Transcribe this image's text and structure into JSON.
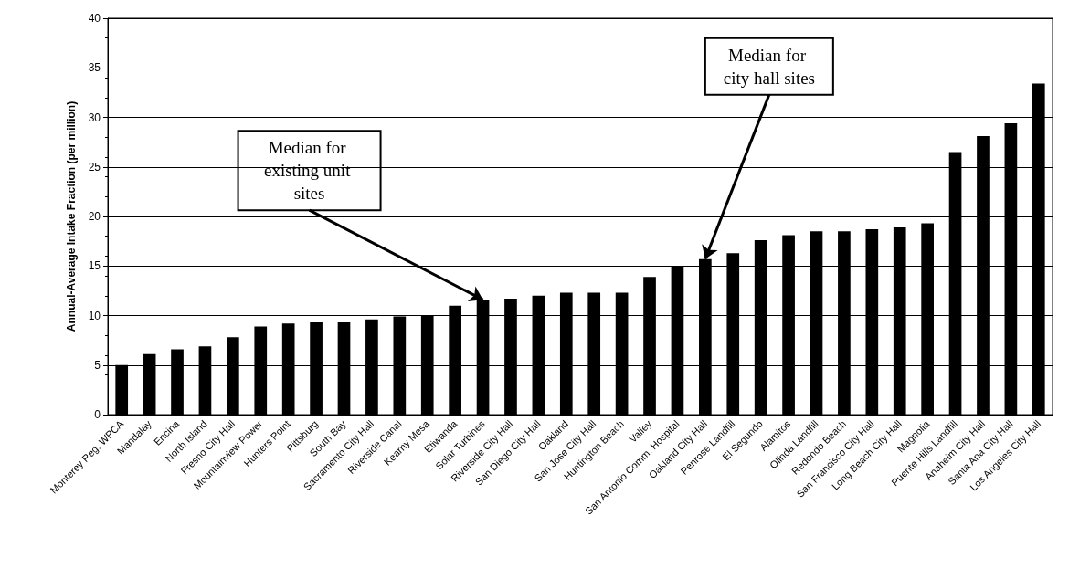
{
  "chart_data": {
    "type": "bar",
    "ylabel": "Annual-Average Intake Fraction (per million)",
    "categories": [
      "Monterey Reg. WPCA",
      "Mandalay",
      "Encina",
      "North Island",
      "Fresno City Hall",
      "Mountainview Power",
      "Hunters Point",
      "Pittsburg",
      "South Bay",
      "Sacramento City Hall",
      "Riverside Canal",
      "Kearny Mesa",
      "Etiwanda",
      "Solar Turbines",
      "Riverside City Hall",
      "San Diego City Hall",
      "Oakland",
      "San Jose City Hall",
      "Huntington Beach",
      "Valley",
      "San Antonio Comm. Hospital",
      "Oakland City Hall",
      "Penrose Landfill",
      "El Segundo",
      "Alamitos",
      "Olinda Landfill",
      "Redondo Beach",
      "San Francisco City Hall",
      "Long Beach City Hall",
      "Magnolia",
      "Puente Hills Landfill",
      "Anaheim City Hall",
      "Santa Ana City Hall",
      "Los Angeles City Hall"
    ],
    "values": [
      5.0,
      6.1,
      6.6,
      6.9,
      7.8,
      8.9,
      9.2,
      9.3,
      9.3,
      9.6,
      9.9,
      10.0,
      11.0,
      11.6,
      11.7,
      12.0,
      12.3,
      12.3,
      12.3,
      13.9,
      15.0,
      15.7,
      16.3,
      17.6,
      18.1,
      18.5,
      18.5,
      18.7,
      18.9,
      19.3,
      26.5,
      28.1,
      29.4,
      33.4
    ],
    "color": "#000000",
    "ylim": [
      0,
      40
    ],
    "yticks": [
      0,
      5,
      10,
      15,
      20,
      25,
      30,
      35,
      40
    ],
    "grid": "y",
    "annotations": [
      {
        "text": "Median for existing unit sites",
        "x": "Solar Turbines",
        "y": 11.6
      },
      {
        "text": "Median for city hall sites",
        "x": "Oakland City Hall",
        "y": 15.7
      }
    ]
  }
}
